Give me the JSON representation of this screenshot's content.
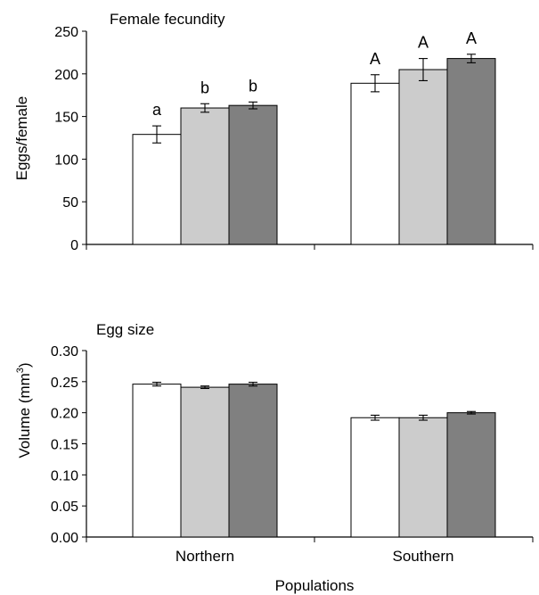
{
  "colors": {
    "white": "#ffffff",
    "light_gray": "#cccccc",
    "dark_gray": "#808080",
    "axis": "#000000"
  },
  "xlabel": "Populations",
  "chart_data": [
    {
      "type": "bar",
      "title": "Female fecundity",
      "ylabel": "Eggs/female",
      "ylabel_sup": "",
      "ylabel_suffix": "",
      "ylim": [
        0,
        250
      ],
      "yticks": [
        "0",
        "50",
        "100",
        "150",
        "200",
        "250"
      ],
      "categories": [
        "Northern",
        "Southern"
      ],
      "show_category_labels": false,
      "bar_colors": [
        "#ffffff",
        "#cccccc",
        "#808080"
      ],
      "series": [
        {
          "values": [
            129,
            189
          ],
          "errors": [
            10,
            10
          ],
          "letters": [
            "a",
            "A"
          ]
        },
        {
          "values": [
            160,
            205
          ],
          "errors": [
            5,
            13
          ],
          "letters": [
            "b",
            "A"
          ]
        },
        {
          "values": [
            163,
            218
          ],
          "errors": [
            4,
            5
          ],
          "letters": [
            "b",
            "A"
          ]
        }
      ]
    },
    {
      "type": "bar",
      "title": "Egg size",
      "ylabel": "Volume (mm",
      "ylabel_sup": "3",
      "ylabel_suffix": ")",
      "ylim": [
        0,
        0.3
      ],
      "yticks": [
        "0.00",
        "0.05",
        "0.10",
        "0.15",
        "0.20",
        "0.25",
        "0.30"
      ],
      "categories": [
        "Northern",
        "Southern"
      ],
      "show_category_labels": true,
      "bar_colors": [
        "#ffffff",
        "#cccccc",
        "#808080"
      ],
      "series": [
        {
          "values": [
            0.246,
            0.192
          ],
          "errors": [
            0.003,
            0.004
          ],
          "letters": [
            "",
            ""
          ]
        },
        {
          "values": [
            0.241,
            0.192
          ],
          "errors": [
            0.002,
            0.004
          ],
          "letters": [
            "",
            ""
          ]
        },
        {
          "values": [
            0.246,
            0.2
          ],
          "errors": [
            0.003,
            0.002
          ],
          "letters": [
            "",
            ""
          ]
        }
      ]
    }
  ]
}
